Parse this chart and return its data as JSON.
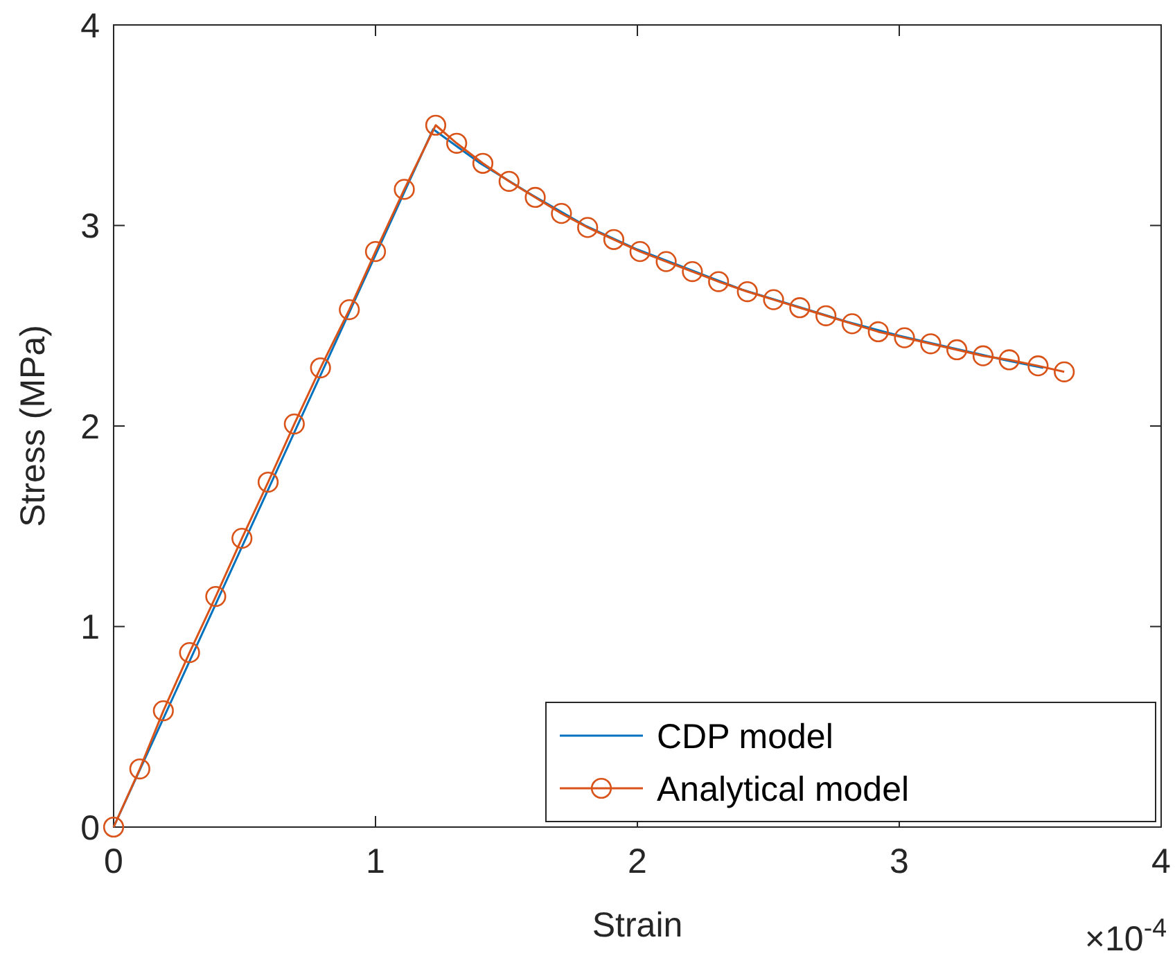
{
  "chart_data": {
    "type": "line",
    "xlabel": "Strain",
    "ylabel": "Stress (MPa)",
    "annotations": [
      "×10$^{-4}$"
    ],
    "xlim": [
      0,
      4
    ],
    "ylim": [
      0,
      4
    ],
    "xticks": [
      0,
      1,
      2,
      3,
      4
    ],
    "yticks": [
      0,
      1,
      2,
      3,
      4
    ],
    "grid": false,
    "legend": "bottom right",
    "series": [
      {
        "name": "CDP model",
        "color": "#0072bd",
        "marker": "none",
        "x": [
          0,
          1.22,
          1.4,
          1.6,
          1.8,
          2.0,
          2.2,
          2.4,
          2.6,
          2.8,
          3.0,
          3.2,
          3.4,
          3.55
        ],
        "values": [
          0,
          3.48,
          3.31,
          3.15,
          3.0,
          2.88,
          2.78,
          2.68,
          2.6,
          2.52,
          2.45,
          2.39,
          2.33,
          2.29
        ]
      },
      {
        "name": "Analytical model",
        "color": "#d95319",
        "marker": "circle",
        "x": [
          0,
          0.1,
          0.19,
          0.29,
          0.39,
          0.49,
          0.59,
          0.69,
          0.79,
          0.9,
          1.0,
          1.11,
          1.23,
          1.31,
          1.41,
          1.51,
          1.61,
          1.71,
          1.81,
          1.91,
          2.01,
          2.11,
          2.21,
          2.31,
          2.42,
          2.52,
          2.62,
          2.72,
          2.82,
          2.92,
          3.02,
          3.12,
          3.22,
          3.32,
          3.42,
          3.53,
          3.63
        ],
        "values": [
          0,
          0.29,
          0.58,
          0.87,
          1.15,
          1.44,
          1.72,
          2.01,
          2.29,
          2.58,
          2.87,
          3.18,
          3.5,
          3.41,
          3.31,
          3.22,
          3.14,
          3.06,
          2.99,
          2.93,
          2.87,
          2.82,
          2.77,
          2.72,
          2.67,
          2.63,
          2.59,
          2.55,
          2.51,
          2.47,
          2.44,
          2.41,
          2.38,
          2.35,
          2.33,
          2.3,
          2.27
        ]
      }
    ]
  }
}
